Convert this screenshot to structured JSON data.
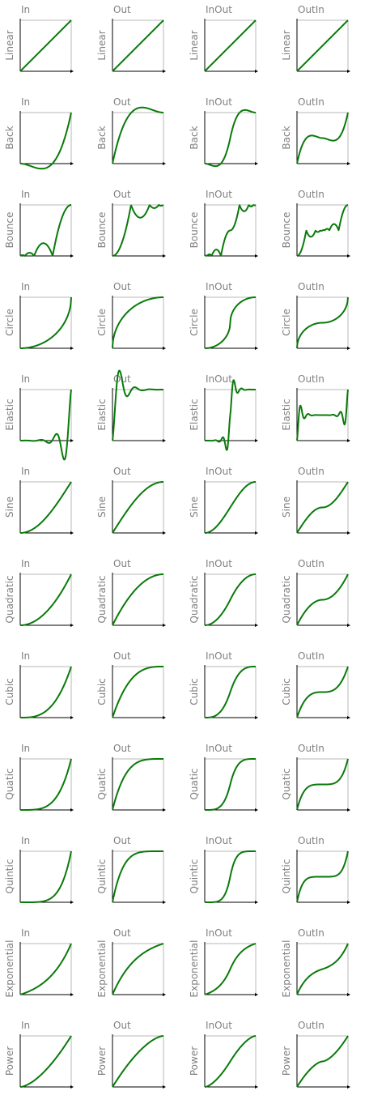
{
  "chart_data": {
    "type": "line",
    "layout": "small-multiples",
    "modes": [
      "In",
      "Out",
      "InOut",
      "OutIn"
    ],
    "types": [
      "Linear",
      "Back",
      "Bounce",
      "Circle",
      "Elastic",
      "Sine",
      "Quadratic",
      "Cubic",
      "Quatic",
      "Quintic",
      "Exponential",
      "Power"
    ],
    "type_labels": [
      "Linear",
      "Back",
      "Bounce",
      "Circle",
      "Elastic",
      "Sine",
      "Quadratic",
      "Cubic",
      "Quatic",
      "Quintic",
      "Exponential",
      "Power"
    ],
    "x_range": [
      0,
      1
    ],
    "colors": {
      "curve": "#0a7a0a",
      "axis": "#000000",
      "frame": "#b8b8b8",
      "label": "#808080"
    }
  }
}
